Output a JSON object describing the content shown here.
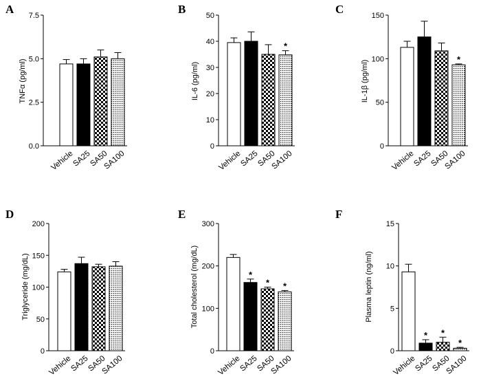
{
  "chart_data": [
    {
      "panel": "A",
      "type": "bar",
      "ylabel": "TNFα (pg/ml)",
      "ylim": [
        0,
        7.5
      ],
      "yticks": [
        "0.0",
        "2.5",
        "5.0",
        "7.5"
      ],
      "categories": [
        "Vehicle",
        "SA25",
        "SA50",
        "SA100"
      ],
      "values": [
        4.7,
        4.7,
        5.1,
        5.0
      ],
      "errors": [
        0.25,
        0.3,
        0.4,
        0.35
      ],
      "significant": [
        false,
        false,
        false,
        false
      ]
    },
    {
      "panel": "B",
      "type": "bar",
      "ylabel": "IL-6 (pg/ml)",
      "ylim": [
        0,
        50
      ],
      "yticks": [
        "0",
        "10",
        "20",
        "30",
        "40",
        "50"
      ],
      "categories": [
        "Vehicle",
        "SA25",
        "SA50",
        "SA100"
      ],
      "values": [
        39.5,
        40,
        35,
        34.8
      ],
      "errors": [
        1.8,
        3.6,
        3.7,
        1.6
      ],
      "significant": [
        false,
        false,
        false,
        true
      ]
    },
    {
      "panel": "C",
      "type": "bar",
      "ylabel": "IL-1β (pg/ml)",
      "ylim": [
        0,
        150
      ],
      "yticks": [
        "0",
        "50",
        "100",
        "150"
      ],
      "categories": [
        "Vehicle",
        "SA25",
        "SA50",
        "SA100"
      ],
      "values": [
        113,
        125,
        109,
        93
      ],
      "errors": [
        7,
        18,
        9,
        1
      ],
      "significant": [
        false,
        false,
        false,
        true
      ]
    },
    {
      "panel": "D",
      "type": "bar",
      "ylabel": "Triglyceride (mg/dL)",
      "ylim": [
        0,
        200
      ],
      "yticks": [
        "0",
        "50",
        "100",
        "150",
        "200"
      ],
      "categories": [
        "Vehicle",
        "SA25",
        "SA50",
        "SA100"
      ],
      "values": [
        124,
        137,
        132,
        133
      ],
      "errors": [
        4,
        10,
        4,
        7
      ],
      "significant": [
        false,
        false,
        false,
        false
      ]
    },
    {
      "panel": "E",
      "type": "bar",
      "ylabel": "Total cholesterol (mg/dL)",
      "ylim": [
        0,
        300
      ],
      "yticks": [
        "0",
        "100",
        "200",
        "300"
      ],
      "categories": [
        "Vehicle",
        "SA25",
        "SA50",
        "SA100"
      ],
      "values": [
        220,
        161,
        146,
        139
      ],
      "errors": [
        7,
        8,
        4,
        3
      ],
      "significant": [
        false,
        true,
        true,
        true
      ]
    },
    {
      "panel": "F",
      "type": "bar",
      "ylabel": "Plasma leptin (ng/ml)",
      "ylim": [
        0,
        15
      ],
      "yticks": [
        "0",
        "5",
        "10",
        "15"
      ],
      "categories": [
        "Vehicle",
        "SA25",
        "SA50",
        "SA100"
      ],
      "values": [
        9.3,
        0.9,
        1.0,
        0.3
      ],
      "errors": [
        0.9,
        0.4,
        0.6,
        0.1
      ],
      "significant": [
        false,
        true,
        true,
        true
      ]
    }
  ],
  "significance_marker": "*",
  "bar_fills": [
    "white",
    "black",
    "checker",
    "dots"
  ]
}
